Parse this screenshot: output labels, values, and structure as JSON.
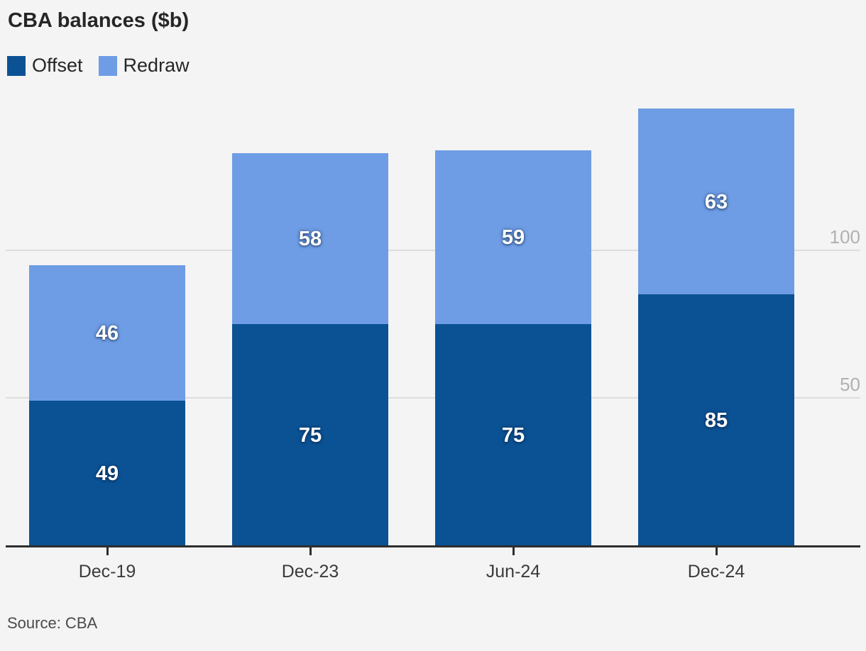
{
  "chart_data": {
    "type": "bar",
    "stacked": true,
    "title": "CBA balances ($b)",
    "categories": [
      "Dec-19",
      "Dec-23",
      "Jun-24",
      "Dec-24"
    ],
    "series": [
      {
        "name": "Offset",
        "color": "#0b5294",
        "values": [
          49,
          75,
          75,
          85
        ]
      },
      {
        "name": "Redraw",
        "color": "#6e9de5",
        "values": [
          46,
          58,
          59,
          63
        ]
      }
    ],
    "totals": [
      95,
      133,
      134,
      148
    ],
    "y_ticks": [
      50,
      100
    ],
    "ylim": [
      0,
      148
    ],
    "grid": "horizontal",
    "legend_position": "top-left",
    "value_labels": "white-inside-segments",
    "y_axis_side": "right"
  },
  "source": "Source: CBA",
  "colors": {
    "background": "#f4f4f4",
    "offset": "#0b5294",
    "redraw": "#6e9de5",
    "axis": "#2e2e2e",
    "gridline": "#dddddd",
    "y_tick_label": "#b1b1b1",
    "category_label": "#3b3b3b",
    "title_text": "#262626"
  }
}
